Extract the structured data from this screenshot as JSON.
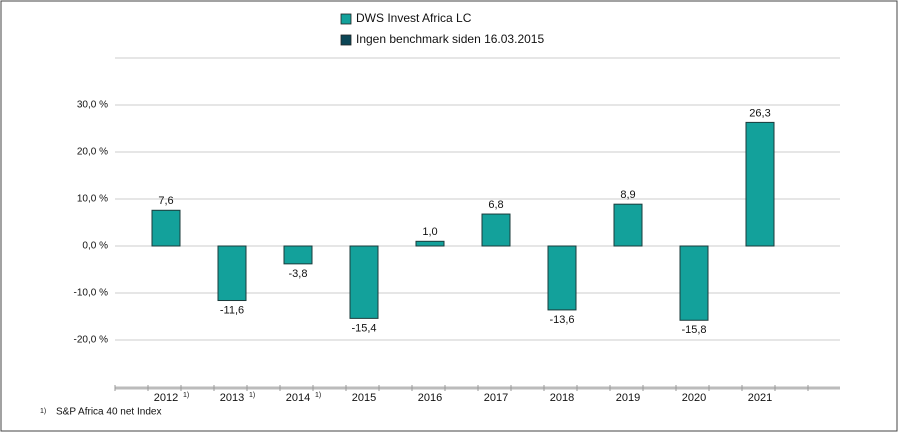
{
  "chart_data": {
    "type": "bar",
    "categories": [
      "2012",
      "2013",
      "2014",
      "2015",
      "2016",
      "2017",
      "2018",
      "2019",
      "2020",
      "2021"
    ],
    "category_notes": [
      "1)",
      "1)",
      "1)",
      null,
      null,
      null,
      null,
      null,
      null,
      null
    ],
    "series": [
      {
        "name": "DWS Invest Africa  LC",
        "color": "#13a19b",
        "values": [
          7.6,
          -11.6,
          -3.8,
          -15.4,
          1.0,
          6.8,
          -13.6,
          8.9,
          -15.8,
          26.3
        ],
        "value_labels": [
          "7,6",
          "-11,6",
          "-3,8",
          "-15,4",
          "1,0",
          "6,8",
          "-13,6",
          "8,9",
          "-15,8",
          "26,3"
        ]
      },
      {
        "name": "Ingen benchmark siden 16.03.2015",
        "color": "#0b4656",
        "values": [
          null,
          null,
          null,
          null,
          null,
          null,
          null,
          null,
          null,
          null
        ]
      }
    ],
    "ylim": [
      -30,
      40
    ],
    "yticks": [
      {
        "value": 30,
        "label": "30,0 %"
      },
      {
        "value": 20,
        "label": "20,0 %"
      },
      {
        "value": 10,
        "label": "10,0 %"
      },
      {
        "value": 0,
        "label": "0,0 %"
      },
      {
        "value": -10,
        "label": "-10,0 %"
      },
      {
        "value": -20,
        "label": "-20,0 %"
      }
    ],
    "grid": true,
    "footnote": {
      "marker": "1)",
      "text": "S&P Africa 40 net Index"
    }
  }
}
